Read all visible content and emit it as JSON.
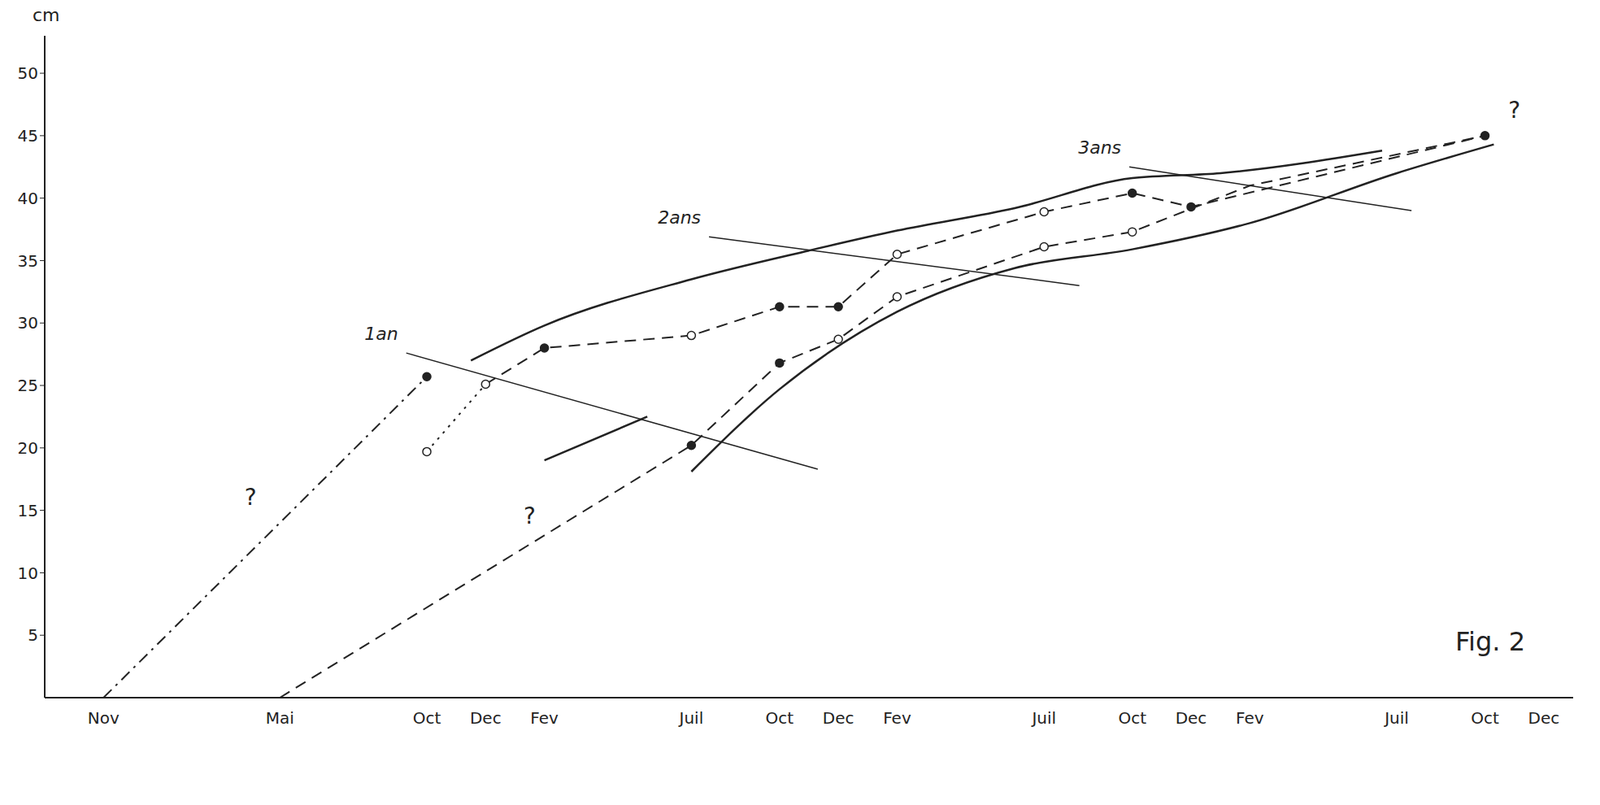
{
  "chart_data": {
    "type": "line",
    "y_label": "cm",
    "caption": "Fig. 2",
    "xlim": [
      -2,
      50
    ],
    "xticks": [
      {
        "value": 0,
        "label": "Nov"
      },
      {
        "value": 6,
        "label": "Mai"
      },
      {
        "value": 11,
        "label": "Oct"
      },
      {
        "value": 13,
        "label": "Dec"
      },
      {
        "value": 15,
        "label": "Fev"
      },
      {
        "value": 20,
        "label": "Juil"
      },
      {
        "value": 23,
        "label": "Oct"
      },
      {
        "value": 25,
        "label": "Dec"
      },
      {
        "value": 27,
        "label": "Fev"
      },
      {
        "value": 32,
        "label": "Juil"
      },
      {
        "value": 35,
        "label": "Oct"
      },
      {
        "value": 37,
        "label": "Dec"
      },
      {
        "value": 39,
        "label": "Fev"
      },
      {
        "value": 44,
        "label": "Juil"
      },
      {
        "value": 47,
        "label": "Oct"
      },
      {
        "value": 49,
        "label": "Dec"
      }
    ],
    "ylim": [
      0,
      53
    ],
    "yticks": [
      5,
      10,
      15,
      20,
      25,
      30,
      35,
      40,
      45,
      50
    ],
    "grid": false,
    "series": [
      {
        "type": "line",
        "line_style": "dashdot",
        "color": "#222222",
        "x": [
          0,
          6,
          11
        ],
        "values": [
          0,
          14,
          25.7
        ]
      },
      {
        "type": "line",
        "line_style": "dotted",
        "color": "#222222",
        "x": [
          11,
          13
        ],
        "values": [
          19.7,
          25.1
        ]
      },
      {
        "type": "line",
        "line_style": "dashed",
        "color": "#222222",
        "x": [
          13,
          15,
          20,
          23,
          25,
          27,
          32,
          35,
          37,
          47
        ],
        "values": [
          25.1,
          28,
          29,
          31.3,
          31.3,
          35.5,
          38.9,
          40.4,
          39.3,
          45
        ]
      },
      {
        "type": "line",
        "line_style": "dashed",
        "color": "#222222",
        "x": [
          6,
          15,
          20,
          23,
          25,
          27,
          32,
          35,
          39,
          47
        ],
        "values": [
          0,
          13,
          20.2,
          26.8,
          28.7,
          32.1,
          36.1,
          37.3,
          41,
          45
        ]
      },
      {
        "type": "line",
        "line_style": "solid",
        "color": "#222222",
        "x": [
          12.5,
          15,
          20,
          24,
          27,
          31,
          35,
          38,
          43.5
        ],
        "values": [
          27,
          29.8,
          33.5,
          35.8,
          37.4,
          39.2,
          41.6,
          42,
          43.8
        ]
      },
      {
        "type": "line",
        "line_style": "solid",
        "color": "#222222",
        "x": [
          20,
          23,
          27,
          31,
          35,
          39,
          44,
          47.3
        ],
        "values": [
          18.1,
          24.7,
          30.9,
          34.4,
          35.9,
          38,
          42,
          44.3
        ]
      },
      {
        "type": "line",
        "line_style": "solid",
        "color": "#222222",
        "x": [
          15,
          18.5
        ],
        "values": [
          19,
          22.5
        ]
      },
      {
        "type": "line",
        "line_style": "solid",
        "color": "#222222",
        "label": "1an",
        "x": [
          10.3,
          24.3
        ],
        "values": [
          27.6,
          18.3
        ]
      },
      {
        "type": "line",
        "line_style": "solid",
        "color": "#222222",
        "label": "2ans",
        "x": [
          20.6,
          33.2
        ],
        "values": [
          36.9,
          33
        ]
      },
      {
        "type": "line",
        "line_style": "solid",
        "color": "#222222",
        "label": "3ans",
        "x": [
          34.9,
          44.5
        ],
        "values": [
          42.5,
          39
        ]
      },
      {
        "type": "scatter",
        "marker": "filled",
        "color": "#222222",
        "x": [
          11,
          15,
          20,
          23,
          23,
          25,
          35,
          37,
          47
        ],
        "values": [
          25.7,
          28,
          20.2,
          31.3,
          26.8,
          31.3,
          40.4,
          39.3,
          45
        ]
      },
      {
        "type": "scatter",
        "marker": "open",
        "color": "#222222",
        "x": [
          11,
          13,
          20,
          25,
          27,
          27,
          32,
          32,
          35
        ],
        "values": [
          19.7,
          25.1,
          29,
          28.7,
          35.5,
          32.1,
          38.9,
          36.1,
          37.3
        ]
      }
    ],
    "annotations": [
      {
        "x": 5,
        "y": 16,
        "text": "?"
      },
      {
        "x": 14.5,
        "y": 14.5,
        "text": "?"
      },
      {
        "x": 48,
        "y": 47,
        "text": "?"
      }
    ]
  }
}
